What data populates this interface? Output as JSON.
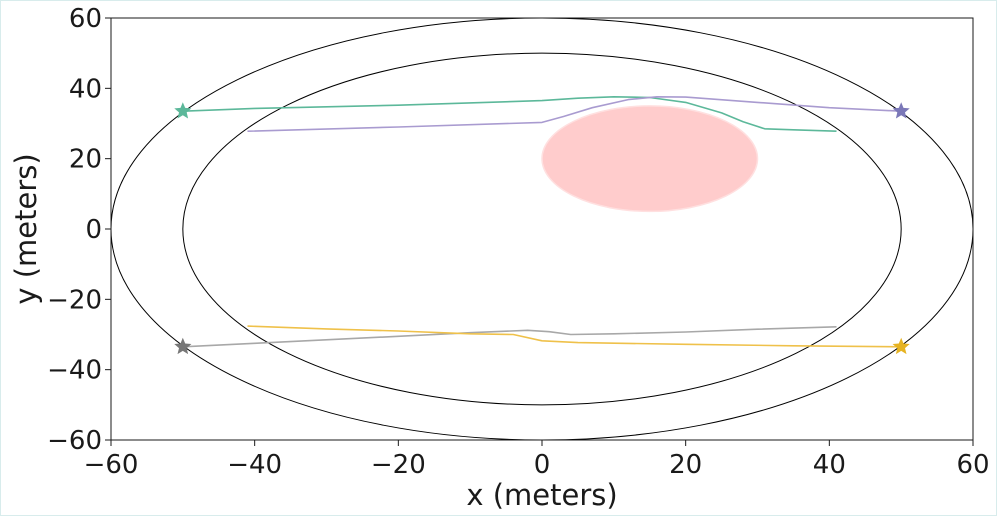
{
  "chart_data": {
    "type": "line",
    "xlabel": "x (meters)",
    "ylabel": "y (meters)",
    "xlim": [
      -60,
      60
    ],
    "ylim": [
      -60,
      60
    ],
    "xticks": [
      -60,
      -40,
      -20,
      0,
      20,
      40,
      60
    ],
    "yticks": [
      -60,
      -40,
      -20,
      0,
      20,
      40,
      60
    ],
    "tick_labels_x": [
      "−60",
      "−40",
      "−20",
      "0",
      "20",
      "40",
      "60"
    ],
    "tick_labels_y": [
      "−60",
      "−40",
      "−20",
      "0",
      "20",
      "40",
      "60"
    ],
    "grid": false,
    "ellipses": [
      {
        "name": "outer-boundary",
        "cx": 0,
        "cy": 0,
        "rx": 60,
        "ry": 60,
        "color": "#000000"
      },
      {
        "name": "inner-boundary",
        "cx": 0,
        "cy": 0,
        "rx": 50,
        "ry": 50,
        "color": "#000000"
      }
    ],
    "obstacle": {
      "cx": 15,
      "cy": 20,
      "rx": 15,
      "ry": 15,
      "color": "#ffcccc"
    },
    "series": [
      {
        "color": "#5cb89a",
        "marker": "star",
        "points": [
          [
            -50,
            33.5
          ],
          [
            -40,
            34.3
          ],
          [
            -20,
            35.2
          ],
          [
            0,
            36.5
          ],
          [
            5,
            37.2
          ],
          [
            10,
            37.6
          ],
          [
            15,
            37.4
          ],
          [
            20,
            36.0
          ],
          [
            25,
            33.0
          ],
          [
            28,
            30.5
          ],
          [
            31,
            28.5
          ],
          [
            35,
            28.2
          ],
          [
            41,
            27.8
          ]
        ]
      },
      {
        "color": "#a99bd0",
        "marker": "star",
        "markerColor": "#7b78b8",
        "points": [
          [
            -41,
            27.8
          ],
          [
            -20,
            29.0
          ],
          [
            0,
            30.3
          ],
          [
            3,
            32.0
          ],
          [
            7,
            34.5
          ],
          [
            12,
            36.8
          ],
          [
            16,
            37.6
          ],
          [
            20,
            37.5
          ],
          [
            30,
            36.0
          ],
          [
            40,
            34.5
          ],
          [
            50,
            33.5
          ]
        ]
      },
      {
        "color": "#a8a8a8",
        "marker": "star",
        "markerColor": "#777777",
        "points": [
          [
            -50,
            -33.5
          ],
          [
            -40,
            -32.5
          ],
          [
            -20,
            -30.5
          ],
          [
            -10,
            -29.5
          ],
          [
            -2,
            -28.8
          ],
          [
            1,
            -29.2
          ],
          [
            4,
            -30.0
          ],
          [
            10,
            -29.8
          ],
          [
            20,
            -29.3
          ],
          [
            30,
            -28.5
          ],
          [
            41,
            -27.8
          ]
        ]
      },
      {
        "color": "#efc14a",
        "marker": "star",
        "markerColor": "#e6b322",
        "points": [
          [
            -41,
            -27.6
          ],
          [
            -30,
            -28.4
          ],
          [
            -20,
            -29.0
          ],
          [
            -10,
            -29.8
          ],
          [
            -4,
            -30.0
          ],
          [
            0,
            -31.8
          ],
          [
            5,
            -32.3
          ],
          [
            20,
            -32.8
          ],
          [
            35,
            -33.2
          ],
          [
            50,
            -33.5
          ]
        ]
      }
    ]
  }
}
